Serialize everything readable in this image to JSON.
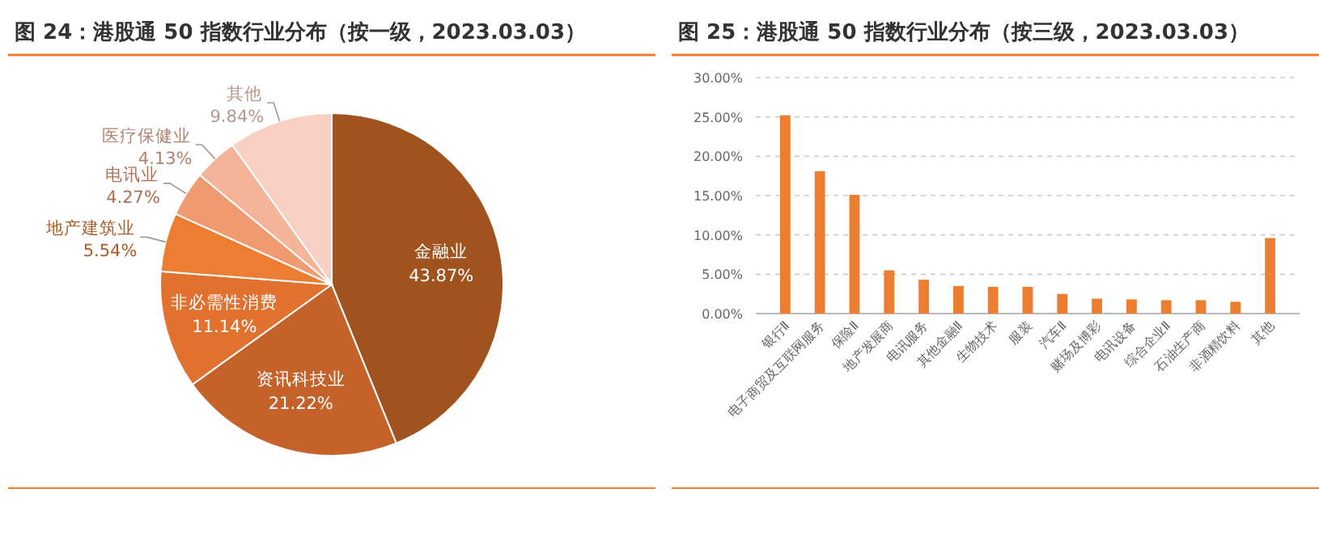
{
  "chart_data": [
    {
      "type": "pie",
      "title": "图 24：港股通 50 指数行业分布（按一级，2023.03.03）",
      "categories": [
        "金融业",
        "资讯科技业",
        "非必需性消费",
        "地产建筑业",
        "电讯业",
        "医疗保健业",
        "其他"
      ],
      "values": [
        43.87,
        21.22,
        11.14,
        5.54,
        4.27,
        4.13,
        9.84
      ],
      "value_labels": [
        "43.87%",
        "21.22%",
        "11.14%",
        "5.54%",
        "4.27%",
        "4.13%",
        "9.84%"
      ],
      "colors": [
        "#a0521f",
        "#c4622a",
        "#e0712f",
        "#ed7d31",
        "#f09a72",
        "#f3b499",
        "#f8d0c3"
      ]
    },
    {
      "type": "bar",
      "title": "图 25：港股通 50 指数行业分布（按三级，2023.03.03）",
      "categories": [
        "银行Ⅱ",
        "电子商贸及互联网服务",
        "保险Ⅱ",
        "地产发展商",
        "电讯服务",
        "其他金融Ⅱ",
        "生物技术",
        "服装",
        "汽车Ⅱ",
        "赌场及博彩",
        "电讯设备",
        "综合企业Ⅱ",
        "石油生产商",
        "非酒精饮料",
        "其他"
      ],
      "values": [
        25.2,
        18.1,
        15.1,
        5.5,
        4.3,
        3.5,
        3.4,
        3.4,
        2.5,
        1.9,
        1.8,
        1.7,
        1.7,
        1.5,
        9.6
      ],
      "color": "#ed7d31",
      "ylim": [
        0,
        30
      ],
      "yticks": [
        {
          "value": 0,
          "label": "0.00%"
        },
        {
          "value": 5,
          "label": "5.00%"
        },
        {
          "value": 10,
          "label": "10.00%"
        },
        {
          "value": 15,
          "label": "15.00%"
        },
        {
          "value": 20,
          "label": "20.00%"
        },
        {
          "value": 25,
          "label": "25.00%"
        },
        {
          "value": 30,
          "label": "30.00%"
        }
      ],
      "grid": "y"
    }
  ]
}
